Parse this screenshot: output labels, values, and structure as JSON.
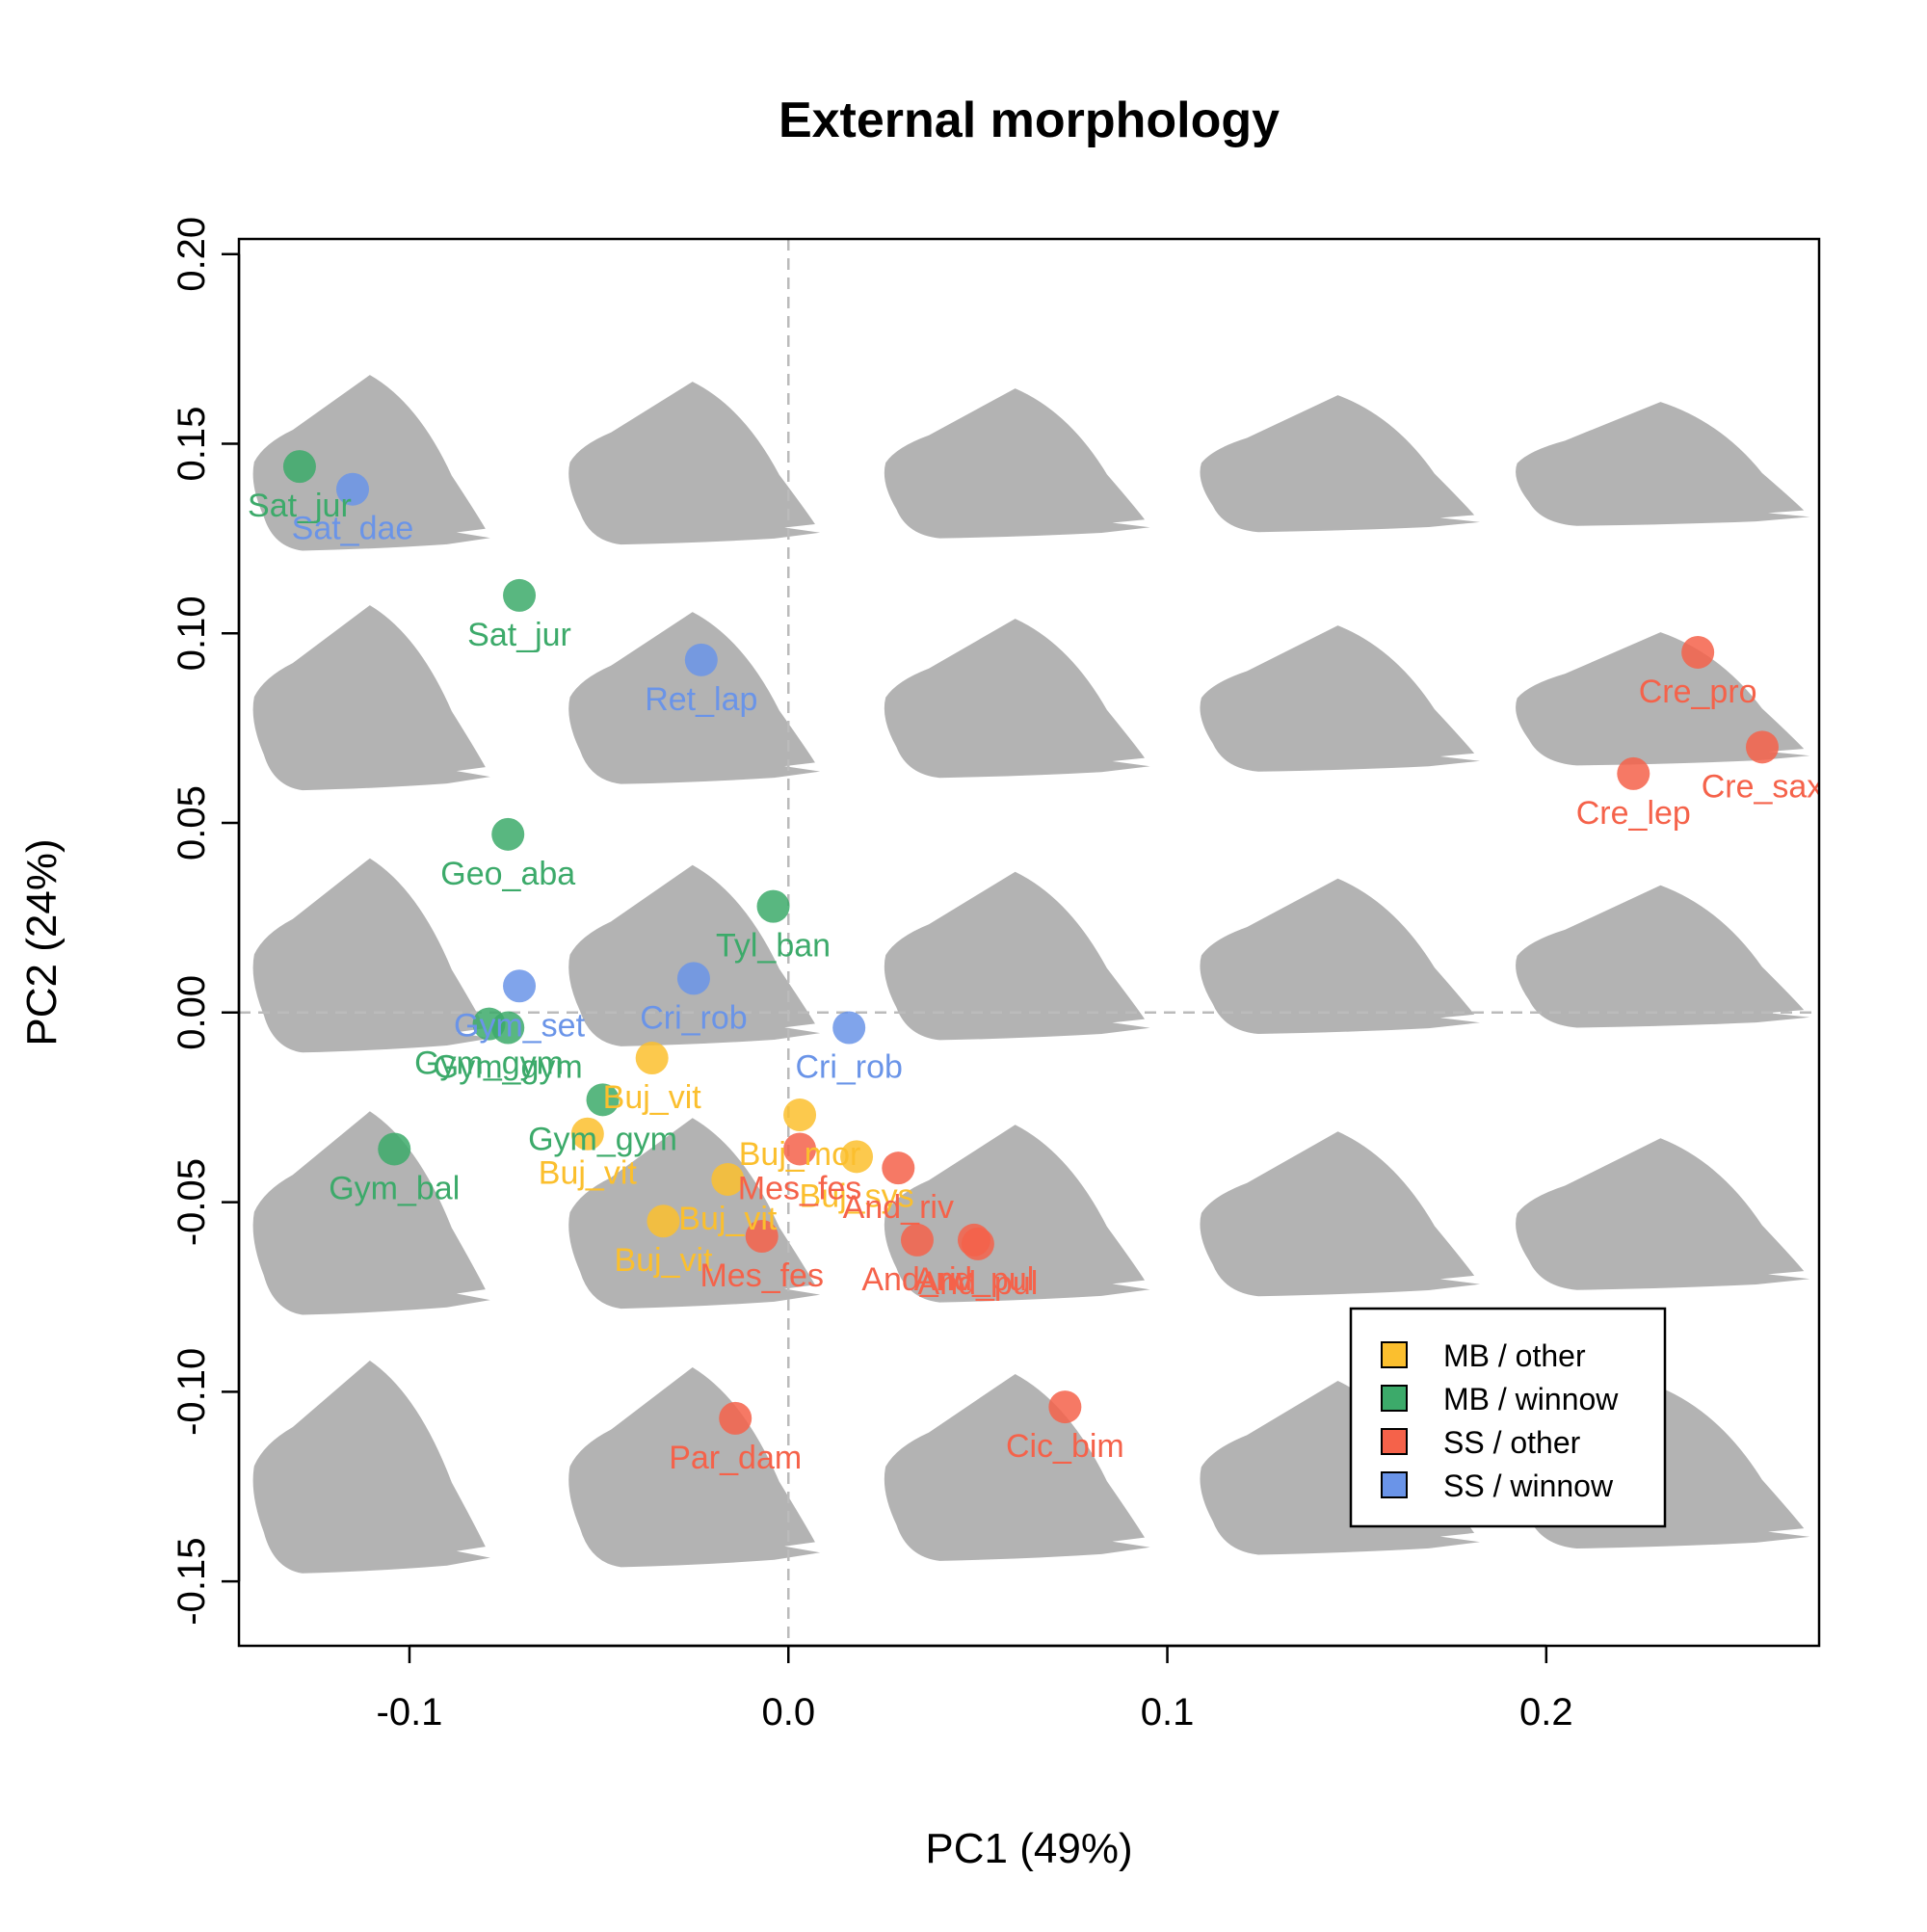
{
  "chart_data": {
    "type": "scatter",
    "title": "External morphology",
    "xlabel": "PC1 (49%)",
    "ylabel": "PC2 (24%)",
    "xlim": [
      -0.145,
      0.272
    ],
    "ylim": [
      -0.167,
      0.204
    ],
    "xticks": [
      -0.1,
      0.0,
      0.1,
      0.2
    ],
    "xtick_labels": [
      "-0.1",
      "0.0",
      "0.1",
      "0.2"
    ],
    "yticks": [
      -0.15,
      -0.1,
      -0.05,
      0.0,
      0.05,
      0.1,
      0.15,
      0.2
    ],
    "ytick_labels": [
      "-0.15",
      "-0.10",
      "-0.05",
      "0.00",
      "0.05",
      "0.10",
      "0.15",
      "0.20"
    ],
    "reference_lines": {
      "x": 0,
      "y": 0,
      "style": "dashed",
      "color": "#bbbbbb"
    },
    "background_shapes": {
      "description": "grey beak outline shapes at grid positions",
      "color": "#b3b3b3",
      "x_centers": [
        -0.113,
        -0.028,
        0.057,
        0.142,
        0.227
      ],
      "y_centers": [
        0.144,
        0.082,
        0.014,
        -0.054,
        -0.121
      ]
    },
    "legend": {
      "position": "bottom-right",
      "entries": [
        {
          "label": "MB / other",
          "color": "#FBBF2E"
        },
        {
          "label": "MB / winnow",
          "color": "#3CAA6A"
        },
        {
          "label": "SS / other",
          "color": "#F5624A"
        },
        {
          "label": "SS / winnow",
          "color": "#6A94E8"
        }
      ]
    },
    "groups": {
      "MB / other": "#FBBF2E",
      "MB / winnow": "#3CAA6A",
      "SS / other": "#F5624A",
      "SS / winnow": "#6A94E8"
    },
    "points": [
      {
        "label": "Sat_jur",
        "x": -0.129,
        "y": 0.144,
        "group": "MB / winnow"
      },
      {
        "label": "Sat_dae",
        "x": -0.115,
        "y": 0.138,
        "group": "SS / winnow"
      },
      {
        "label": "Sat_jur",
        "x": -0.071,
        "y": 0.11,
        "group": "MB / winnow"
      },
      {
        "label": "Ret_lap",
        "x": -0.023,
        "y": 0.093,
        "group": "SS / winnow"
      },
      {
        "label": "Cre_pro",
        "x": 0.24,
        "y": 0.095,
        "group": "SS / other"
      },
      {
        "label": "Cre_sax",
        "x": 0.257,
        "y": 0.07,
        "group": "SS / other"
      },
      {
        "label": "Cre_lep",
        "x": 0.223,
        "y": 0.063,
        "group": "SS / other"
      },
      {
        "label": "Geo_aba",
        "x": -0.074,
        "y": 0.047,
        "group": "MB / winnow"
      },
      {
        "label": "Tyl_ban",
        "x": -0.004,
        "y": 0.028,
        "group": "MB / winnow"
      },
      {
        "label": "Cri_rob",
        "x": -0.025,
        "y": 0.009,
        "group": "SS / winnow"
      },
      {
        "label": "Gym_set",
        "x": -0.071,
        "y": 0.007,
        "group": "SS / winnow"
      },
      {
        "label": "Cri_rob",
        "x": 0.016,
        "y": -0.004,
        "group": "SS / winnow"
      },
      {
        "label": "Gym_gym",
        "x": -0.079,
        "y": -0.003,
        "group": "MB / winnow"
      },
      {
        "label": "Gym_gym",
        "x": -0.074,
        "y": -0.004,
        "group": "MB / winnow"
      },
      {
        "label": "Buj_vit",
        "x": -0.036,
        "y": -0.012,
        "group": "MB / other"
      },
      {
        "label": "Gym_gym",
        "x": -0.049,
        "y": -0.023,
        "group": "MB / winnow"
      },
      {
        "label": "Buj_vit",
        "x": -0.053,
        "y": -0.032,
        "group": "MB / other"
      },
      {
        "label": "Gym_bal",
        "x": -0.104,
        "y": -0.036,
        "group": "MB / winnow"
      },
      {
        "label": "Buj_mor",
        "x": 0.003,
        "y": -0.027,
        "group": "MB / other"
      },
      {
        "label": "Buj_sys",
        "x": 0.018,
        "y": -0.038,
        "group": "MB / other"
      },
      {
        "label": "Mes_fes",
        "x": 0.003,
        "y": -0.036,
        "group": "SS / other"
      },
      {
        "label": "And_riv",
        "x": 0.029,
        "y": -0.041,
        "group": "SS / other"
      },
      {
        "label": "Buj_vit",
        "x": -0.016,
        "y": -0.044,
        "group": "MB / other"
      },
      {
        "label": "Buj_vit",
        "x": -0.033,
        "y": -0.055,
        "group": "MB / other"
      },
      {
        "label": "Mes_fes",
        "x": -0.007,
        "y": -0.059,
        "group": "SS / other"
      },
      {
        "label": "And_riv",
        "x": 0.034,
        "y": -0.06,
        "group": "SS / other"
      },
      {
        "label": "And_pul",
        "x": 0.049,
        "y": -0.06,
        "group": "SS / other"
      },
      {
        "label": "And_pul",
        "x": 0.05,
        "y": -0.061,
        "group": "SS / other"
      },
      {
        "label": "Par_dam",
        "x": -0.014,
        "y": -0.107,
        "group": "SS / other"
      },
      {
        "label": "Cic_bim",
        "x": 0.073,
        "y": -0.104,
        "group": "SS / other"
      }
    ]
  }
}
